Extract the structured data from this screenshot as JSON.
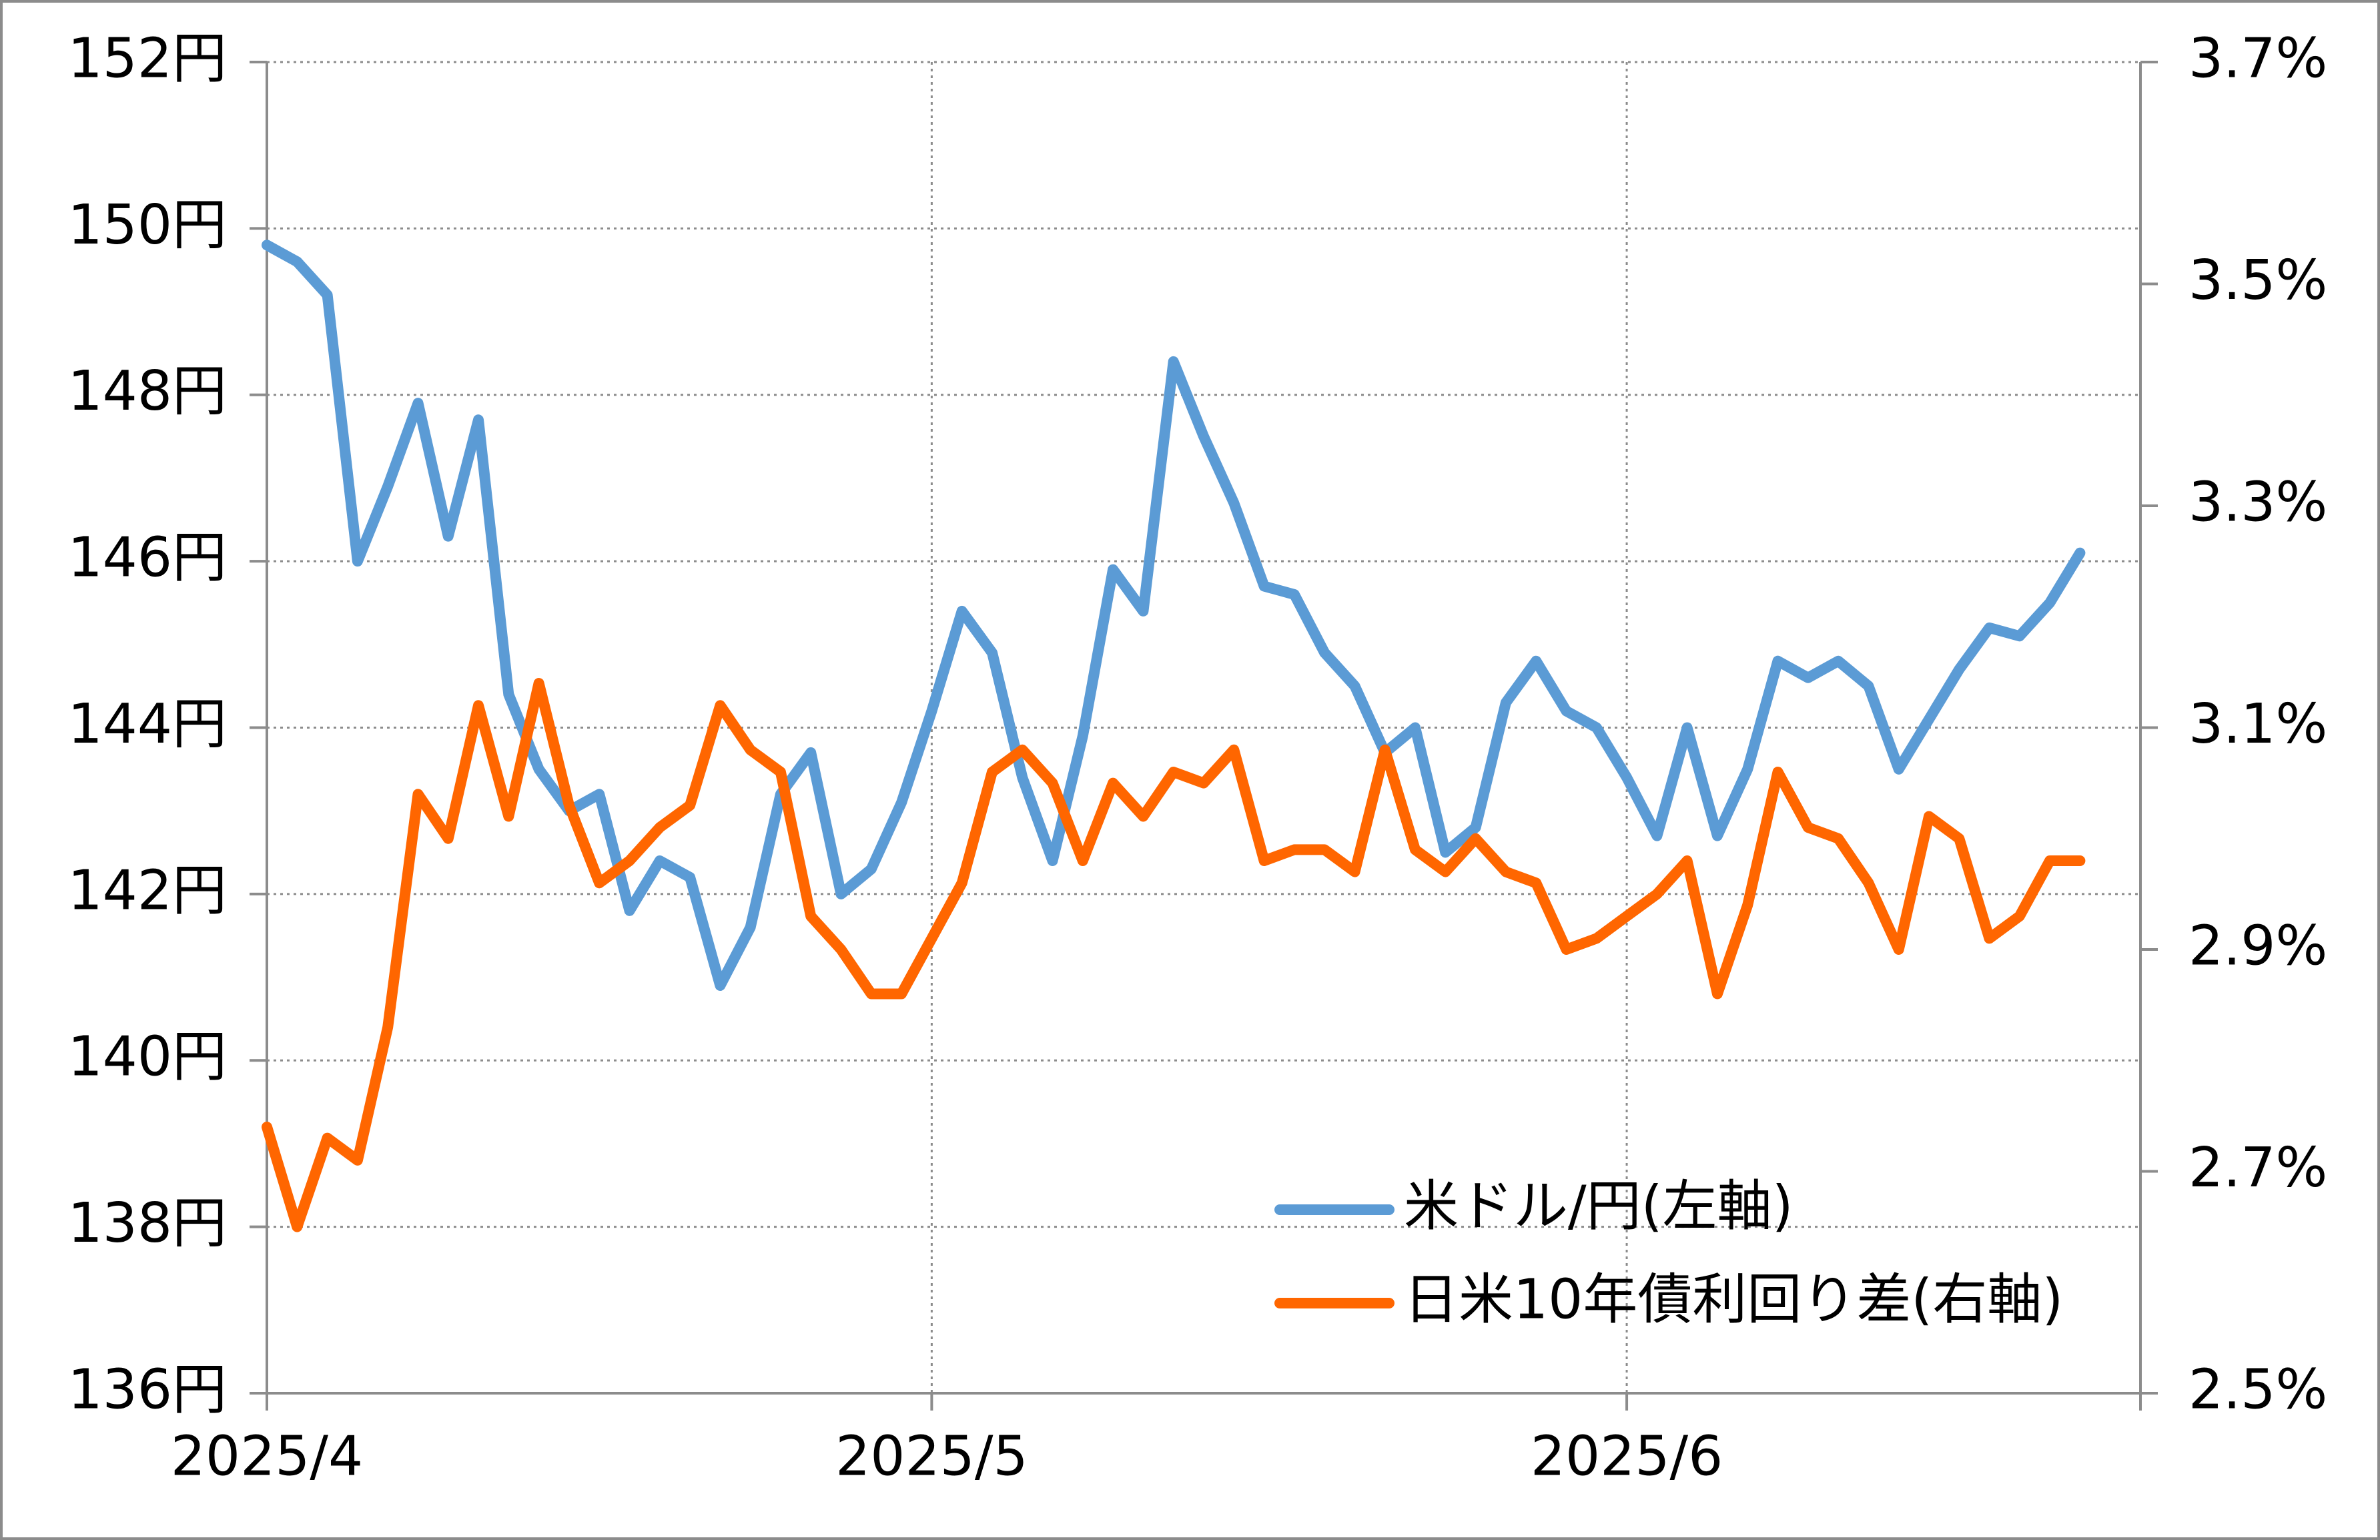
{
  "chart_data": {
    "type": "line",
    "categories": [
      "2025/4",
      null,
      null,
      null,
      null,
      null,
      null,
      null,
      null,
      null,
      null,
      null,
      null,
      null,
      null,
      null,
      null,
      null,
      null,
      null,
      null,
      null,
      "2025/5",
      null,
      null,
      null,
      null,
      null,
      null,
      null,
      null,
      null,
      null,
      null,
      null,
      null,
      null,
      null,
      null,
      null,
      null,
      null,
      null,
      null,
      null,
      "2025/6",
      null,
      null,
      null,
      null,
      null,
      null,
      null,
      null,
      null,
      null,
      null,
      null,
      null,
      null,
      null,
      null,
      null
    ],
    "series": [
      {
        "name": "米ドル/円(左軸)",
        "color": "#5b9bd5",
        "axis": "y",
        "values": [
          149.8,
          149.6,
          149.2,
          146.0,
          146.9,
          147.9,
          146.3,
          147.7,
          144.4,
          143.5,
          143.0,
          143.2,
          141.8,
          142.4,
          142.2,
          140.9,
          141.6,
          143.2,
          143.7,
          142.0,
          142.3,
          143.1,
          144.2,
          145.4,
          144.9,
          143.4,
          142.4,
          143.9,
          145.9,
          145.4,
          148.4,
          147.5,
          146.7,
          145.7,
          145.6,
          144.9,
          144.5,
          143.7,
          144.0,
          142.5,
          142.8,
          144.3,
          144.8,
          144.2,
          144.0,
          143.4,
          142.7,
          144.0,
          142.7,
          143.5,
          144.8,
          144.6,
          144.8,
          144.5,
          143.5,
          144.1,
          144.7,
          145.2,
          145.1,
          145.5,
          146.1,
          null,
          null
        ]
      },
      {
        "name": "日米10年債利回り差(右軸)",
        "color": "#ff6600",
        "axis": "y2",
        "values": [
          2.74,
          2.65,
          2.73,
          2.71,
          2.83,
          3.04,
          3.0,
          3.12,
          3.02,
          3.14,
          3.03,
          2.96,
          2.98,
          3.01,
          3.03,
          3.12,
          3.08,
          3.06,
          2.93,
          2.9,
          2.86,
          2.86,
          2.91,
          2.96,
          3.06,
          3.08,
          3.05,
          2.98,
          3.05,
          3.02,
          3.06,
          3.05,
          3.08,
          2.98,
          2.99,
          2.99,
          2.97,
          3.08,
          2.99,
          2.97,
          3.0,
          2.97,
          2.96,
          2.9,
          2.91,
          2.93,
          2.95,
          2.98,
          2.86,
          2.94,
          3.06,
          3.01,
          3.0,
          2.96,
          2.9,
          3.02,
          3.0,
          2.91,
          2.93,
          2.98,
          2.98,
          null,
          null
        ]
      }
    ],
    "ylim": [
      136,
      152
    ],
    "yticks": [
      {
        "value": 136,
        "label": "136円"
      },
      {
        "value": 138,
        "label": "138円"
      },
      {
        "value": 140,
        "label": "140円"
      },
      {
        "value": 142,
        "label": "142円"
      },
      {
        "value": 144,
        "label": "144円"
      },
      {
        "value": 146,
        "label": "146円"
      },
      {
        "value": 148,
        "label": "148円"
      },
      {
        "value": 150,
        "label": "150円"
      },
      {
        "value": 152,
        "label": "152円"
      }
    ],
    "y2lim": [
      2.5,
      3.7
    ],
    "y2ticks": [
      {
        "value": 2.5,
        "label": "2.5%"
      },
      {
        "value": 2.7,
        "label": "2.7%"
      },
      {
        "value": 2.9,
        "label": "2.9%"
      },
      {
        "value": 3.1,
        "label": "3.1%"
      },
      {
        "value": 3.3,
        "label": "3.3%"
      },
      {
        "value": 3.5,
        "label": "3.5%"
      },
      {
        "value": 3.7,
        "label": "3.7%"
      }
    ],
    "grid": true,
    "legend": "lower right"
  }
}
